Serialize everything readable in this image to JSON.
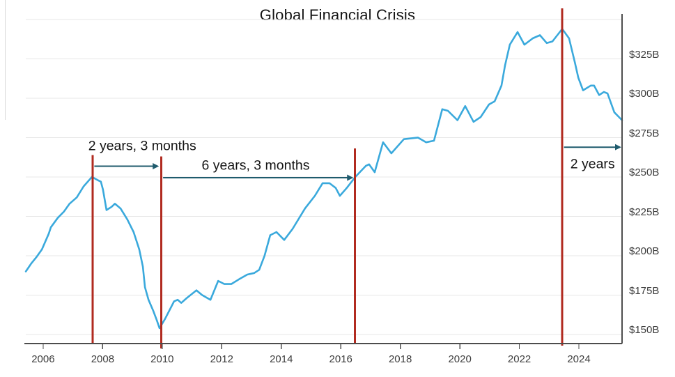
{
  "chart_data": {
    "type": "line",
    "title": "Global Financial Crisis",
    "xlabel": "",
    "ylabel": "",
    "x_domain": [
      2005.37,
      2025.45
    ],
    "y_domain": [
      144.2,
      353.5
    ],
    "grid": true,
    "legend": "none",
    "grid_values": [
      150,
      175,
      200,
      225,
      250,
      275,
      300,
      325,
      350
    ],
    "x_ticks": [
      2006,
      2008,
      2010,
      2012,
      2014,
      2016,
      2018,
      2020,
      2022,
      2024
    ],
    "y_ticks": [
      {
        "label": "$325B",
        "value": 325
      },
      {
        "label": "$300B",
        "value": 300
      },
      {
        "label": "$275B",
        "value": 275
      },
      {
        "label": "$250B",
        "value": 250
      },
      {
        "label": "$225B",
        "value": 225
      },
      {
        "label": "$200B",
        "value": 200
      },
      {
        "label": "$175B",
        "value": 175
      },
      {
        "label": "$150B",
        "value": 150
      }
    ],
    "series": [
      {
        "color": "#3aa9dc",
        "points": [
          [
            2005.42,
            190
          ],
          [
            2005.6,
            195
          ],
          [
            2005.77,
            199
          ],
          [
            2005.96,
            204
          ],
          [
            2006.19,
            214
          ],
          [
            2006.26,
            218
          ],
          [
            2006.49,
            224
          ],
          [
            2006.7,
            228
          ],
          [
            2006.89,
            233
          ],
          [
            2007.13,
            237
          ],
          [
            2007.36,
            244
          ],
          [
            2007.64,
            250
          ],
          [
            2007.83,
            248
          ],
          [
            2007.94,
            247
          ],
          [
            2008.01,
            242
          ],
          [
            2008.13,
            229
          ],
          [
            2008.3,
            231
          ],
          [
            2008.41,
            233
          ],
          [
            2008.6,
            230
          ],
          [
            2008.83,
            223
          ],
          [
            2009.04,
            215
          ],
          [
            2009.23,
            204
          ],
          [
            2009.35,
            193
          ],
          [
            2009.42,
            180
          ],
          [
            2009.54,
            172
          ],
          [
            2009.7,
            165
          ],
          [
            2009.82,
            159
          ],
          [
            2009.91,
            154
          ],
          [
            2010.1,
            160
          ],
          [
            2010.4,
            171
          ],
          [
            2010.52,
            172
          ],
          [
            2010.64,
            170
          ],
          [
            2010.82,
            173
          ],
          [
            2011.15,
            178
          ],
          [
            2011.34,
            175
          ],
          [
            2011.62,
            172
          ],
          [
            2011.88,
            184
          ],
          [
            2012.09,
            182
          ],
          [
            2012.32,
            182
          ],
          [
            2012.58,
            185
          ],
          [
            2012.86,
            188
          ],
          [
            2013.09,
            189
          ],
          [
            2013.26,
            191
          ],
          [
            2013.44,
            200
          ],
          [
            2013.63,
            213
          ],
          [
            2013.84,
            215
          ],
          [
            2014.1,
            210
          ],
          [
            2014.38,
            217
          ],
          [
            2014.8,
            230
          ],
          [
            2015.13,
            238
          ],
          [
            2015.39,
            246
          ],
          [
            2015.62,
            246
          ],
          [
            2015.83,
            243
          ],
          [
            2015.97,
            238
          ],
          [
            2016.2,
            243
          ],
          [
            2016.49,
            250
          ],
          [
            2016.84,
            257
          ],
          [
            2016.95,
            258
          ],
          [
            2017.14,
            253
          ],
          [
            2017.42,
            272
          ],
          [
            2017.7,
            265
          ],
          [
            2018.12,
            274
          ],
          [
            2018.59,
            275
          ],
          [
            2018.87,
            272
          ],
          [
            2019.13,
            273
          ],
          [
            2019.41,
            293
          ],
          [
            2019.6,
            292
          ],
          [
            2019.92,
            286
          ],
          [
            2020.18,
            295
          ],
          [
            2020.46,
            285
          ],
          [
            2020.7,
            288
          ],
          [
            2020.98,
            296
          ],
          [
            2021.17,
            298
          ],
          [
            2021.4,
            308
          ],
          [
            2021.52,
            321
          ],
          [
            2021.68,
            334
          ],
          [
            2021.94,
            342
          ],
          [
            2022.17,
            334
          ],
          [
            2022.45,
            338
          ],
          [
            2022.69,
            340
          ],
          [
            2022.92,
            335
          ],
          [
            2023.11,
            336
          ],
          [
            2023.44,
            344
          ],
          [
            2023.67,
            338
          ],
          [
            2023.86,
            323
          ],
          [
            2023.98,
            313
          ],
          [
            2024.14,
            305
          ],
          [
            2024.4,
            308
          ],
          [
            2024.51,
            308
          ],
          [
            2024.68,
            302
          ],
          [
            2024.84,
            304
          ],
          [
            2024.96,
            303
          ],
          [
            2025.19,
            291
          ],
          [
            2025.45,
            286
          ]
        ]
      }
    ],
    "event_lines": [
      {
        "year": 2007.66,
        "v_top": 264.0,
        "v_bottom": 144.2
      },
      {
        "year": 2009.97,
        "v_top": 263.0,
        "v_bottom": 141.2
      },
      {
        "year": 2016.48,
        "v_top": 268.0,
        "v_bottom": 144.2
      },
      {
        "year": 2023.44,
        "v_top": 357.0,
        "v_bottom": 142.9
      }
    ],
    "annotations": [
      {
        "text": "2 years, 3 months",
        "x1_year": 2007.72,
        "x2_year": 2009.85,
        "arrow_v": 256.8,
        "label_year": 2009.33,
        "label_v": 269.3
      },
      {
        "text": "6 years, 3 months",
        "x1_year": 2010.03,
        "x2_year": 2016.38,
        "arrow_v": 249.5,
        "label_year": 2013.14,
        "label_v": 257.2
      },
      {
        "text": "2 years",
        "x1_year": 2023.5,
        "x2_year": 2025.38,
        "arrow_v": 268.9,
        "label_year": 2024.46,
        "label_v": 257.8
      }
    ],
    "colors": {
      "line": "#3aa9dc",
      "event_line": "#b12b20",
      "arrow": "#1f5b6d",
      "axis": "#4d4d4d",
      "grid": "#e7e7e7",
      "artifact_line": "#d9d9d9",
      "tick_text": "#3d3d3d",
      "title_text": "#141414"
    }
  }
}
